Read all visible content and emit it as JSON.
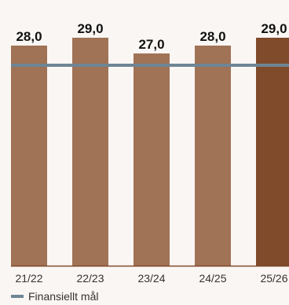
{
  "chart_data": {
    "type": "bar",
    "categories": [
      "21/22",
      "22/23",
      "23/24",
      "24/25",
      "25/26"
    ],
    "values": [
      28.0,
      29.0,
      27.0,
      28.0,
      29.0
    ],
    "value_labels": [
      "28,0",
      "29,0",
      "27,0",
      "28,0",
      "29,0"
    ],
    "target": {
      "name": "Finansiellt mål",
      "value": 25.5
    },
    "ylim": [
      0,
      31
    ],
    "grid": false,
    "legend": "bottom-left",
    "title": "",
    "xlabel": "",
    "ylabel": "",
    "colors": {
      "bar": "#a07256",
      "bar_highlight": "#7f4b2b",
      "target_line": "#6e8594",
      "axis": "#7f4b2b",
      "label": "#111111",
      "tick": "#333333",
      "background": "#faf6f3"
    }
  }
}
